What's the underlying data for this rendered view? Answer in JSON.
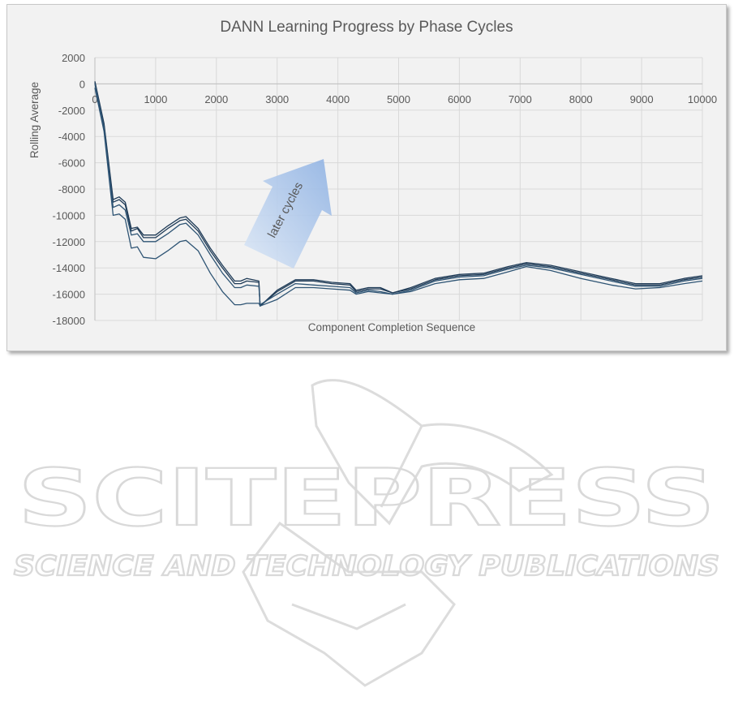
{
  "chart_data": {
    "type": "line",
    "title": "DANN Learning Progress by Phase Cycles",
    "xlabel": "Component Completion Sequence",
    "ylabel": "Rolling Average",
    "xlim": [
      0,
      10000
    ],
    "ylim": [
      -18000,
      2000
    ],
    "xticks": [
      0,
      1000,
      2000,
      3000,
      4000,
      5000,
      6000,
      7000,
      8000,
      9000,
      10000
    ],
    "yticks": [
      2000,
      0,
      -2000,
      -4000,
      -6000,
      -8000,
      -10000,
      -12000,
      -14000,
      -16000,
      -18000
    ],
    "grid": true,
    "annotation": "later cycles",
    "series": [
      {
        "color": "#1f3b57",
        "points": [
          [
            0,
            200
          ],
          [
            150,
            -3000
          ],
          [
            300,
            -8800
          ],
          [
            400,
            -8600
          ],
          [
            500,
            -9000
          ],
          [
            600,
            -11000
          ],
          [
            700,
            -10900
          ],
          [
            800,
            -11500
          ],
          [
            1000,
            -11500
          ],
          [
            1200,
            -10800
          ],
          [
            1400,
            -10200
          ],
          [
            1500,
            -10100
          ],
          [
            1700,
            -11000
          ],
          [
            1900,
            -12500
          ],
          [
            2100,
            -13800
          ],
          [
            2300,
            -15000
          ],
          [
            2400,
            -15000
          ],
          [
            2500,
            -14800
          ],
          [
            2700,
            -15000
          ],
          [
            2720,
            -16900
          ],
          [
            3000,
            -15700
          ],
          [
            3300,
            -14900
          ],
          [
            3600,
            -14900
          ],
          [
            3900,
            -15100
          ],
          [
            4200,
            -15200
          ],
          [
            4300,
            -15700
          ],
          [
            4500,
            -15500
          ],
          [
            4700,
            -15500
          ],
          [
            4900,
            -15900
          ],
          [
            5200,
            -15500
          ],
          [
            5600,
            -14800
          ],
          [
            6000,
            -14500
          ],
          [
            6400,
            -14400
          ],
          [
            6800,
            -13900
          ],
          [
            7100,
            -13600
          ],
          [
            7500,
            -13800
          ],
          [
            8000,
            -14300
          ],
          [
            8500,
            -14800
          ],
          [
            8900,
            -15200
          ],
          [
            9300,
            -15200
          ],
          [
            9700,
            -14800
          ],
          [
            10000,
            -14600
          ]
        ]
      },
      {
        "color": "#1f3b57",
        "points": [
          [
            0,
            100
          ],
          [
            150,
            -3100
          ],
          [
            300,
            -9000
          ],
          [
            400,
            -8800
          ],
          [
            500,
            -9200
          ],
          [
            600,
            -11200
          ],
          [
            700,
            -11000
          ],
          [
            800,
            -11700
          ],
          [
            1000,
            -11700
          ],
          [
            1200,
            -11000
          ],
          [
            1400,
            -10400
          ],
          [
            1500,
            -10300
          ],
          [
            1700,
            -11200
          ],
          [
            1900,
            -12700
          ],
          [
            2100,
            -14000
          ],
          [
            2300,
            -15200
          ],
          [
            2400,
            -15200
          ],
          [
            2500,
            -15000
          ],
          [
            2700,
            -15100
          ],
          [
            2720,
            -16900
          ],
          [
            3000,
            -15800
          ],
          [
            3300,
            -15000
          ],
          [
            3600,
            -15000
          ],
          [
            3900,
            -15200
          ],
          [
            4200,
            -15300
          ],
          [
            4300,
            -15800
          ],
          [
            4500,
            -15600
          ],
          [
            4700,
            -15600
          ],
          [
            4900,
            -15900
          ],
          [
            5200,
            -15600
          ],
          [
            5600,
            -14900
          ],
          [
            6000,
            -14600
          ],
          [
            6400,
            -14500
          ],
          [
            6800,
            -14000
          ],
          [
            7100,
            -13700
          ],
          [
            7500,
            -13900
          ],
          [
            8000,
            -14400
          ],
          [
            8500,
            -14900
          ],
          [
            8900,
            -15300
          ],
          [
            9300,
            -15300
          ],
          [
            9700,
            -14900
          ],
          [
            10000,
            -14700
          ]
        ]
      },
      {
        "color": "#2e5474",
        "points": [
          [
            0,
            0
          ],
          [
            150,
            -3300
          ],
          [
            300,
            -9400
          ],
          [
            400,
            -9200
          ],
          [
            500,
            -9600
          ],
          [
            600,
            -11500
          ],
          [
            700,
            -11400
          ],
          [
            800,
            -12000
          ],
          [
            1000,
            -12000
          ],
          [
            1200,
            -11400
          ],
          [
            1400,
            -10700
          ],
          [
            1500,
            -10600
          ],
          [
            1700,
            -11500
          ],
          [
            1900,
            -13000
          ],
          [
            2100,
            -14400
          ],
          [
            2300,
            -15500
          ],
          [
            2400,
            -15500
          ],
          [
            2500,
            -15300
          ],
          [
            2700,
            -15400
          ],
          [
            2720,
            -16800
          ],
          [
            3000,
            -16000
          ],
          [
            3300,
            -15200
          ],
          [
            3600,
            -15300
          ],
          [
            3900,
            -15400
          ],
          [
            4200,
            -15500
          ],
          [
            4300,
            -15900
          ],
          [
            4500,
            -15700
          ],
          [
            4700,
            -15800
          ],
          [
            4900,
            -16000
          ],
          [
            5200,
            -15700
          ],
          [
            5600,
            -15000
          ],
          [
            6000,
            -14700
          ],
          [
            6400,
            -14600
          ],
          [
            6800,
            -14100
          ],
          [
            7100,
            -13800
          ],
          [
            7500,
            -14000
          ],
          [
            8000,
            -14500
          ],
          [
            8500,
            -15000
          ],
          [
            8900,
            -15400
          ],
          [
            9300,
            -15400
          ],
          [
            9700,
            -15000
          ],
          [
            10000,
            -14800
          ]
        ]
      },
      {
        "color": "#2e5474",
        "points": [
          [
            0,
            -300
          ],
          [
            150,
            -3600
          ],
          [
            300,
            -10000
          ],
          [
            400,
            -9900
          ],
          [
            500,
            -10300
          ],
          [
            600,
            -12500
          ],
          [
            700,
            -12400
          ],
          [
            800,
            -13200
          ],
          [
            1000,
            -13300
          ],
          [
            1200,
            -12700
          ],
          [
            1400,
            -12000
          ],
          [
            1500,
            -11900
          ],
          [
            1700,
            -12700
          ],
          [
            1900,
            -14400
          ],
          [
            2100,
            -15800
          ],
          [
            2300,
            -16800
          ],
          [
            2400,
            -16800
          ],
          [
            2500,
            -16700
          ],
          [
            2700,
            -16700
          ],
          [
            2720,
            -16900
          ],
          [
            3000,
            -16400
          ],
          [
            3300,
            -15500
          ],
          [
            3600,
            -15500
          ],
          [
            3900,
            -15600
          ],
          [
            4200,
            -15700
          ],
          [
            4300,
            -16000
          ],
          [
            4500,
            -15800
          ],
          [
            4700,
            -15900
          ],
          [
            4900,
            -16000
          ],
          [
            5200,
            -15800
          ],
          [
            5600,
            -15200
          ],
          [
            6000,
            -14900
          ],
          [
            6400,
            -14800
          ],
          [
            6800,
            -14300
          ],
          [
            7100,
            -13900
          ],
          [
            7500,
            -14200
          ],
          [
            8000,
            -14800
          ],
          [
            8500,
            -15300
          ],
          [
            8900,
            -15600
          ],
          [
            9300,
            -15500
          ],
          [
            9700,
            -15200
          ],
          [
            10000,
            -15000
          ]
        ]
      }
    ]
  },
  "watermark": {
    "brand": "SCITEPRESS",
    "tagline": "SCIENCE AND TECHNOLOGY PUBLICATIONS"
  }
}
